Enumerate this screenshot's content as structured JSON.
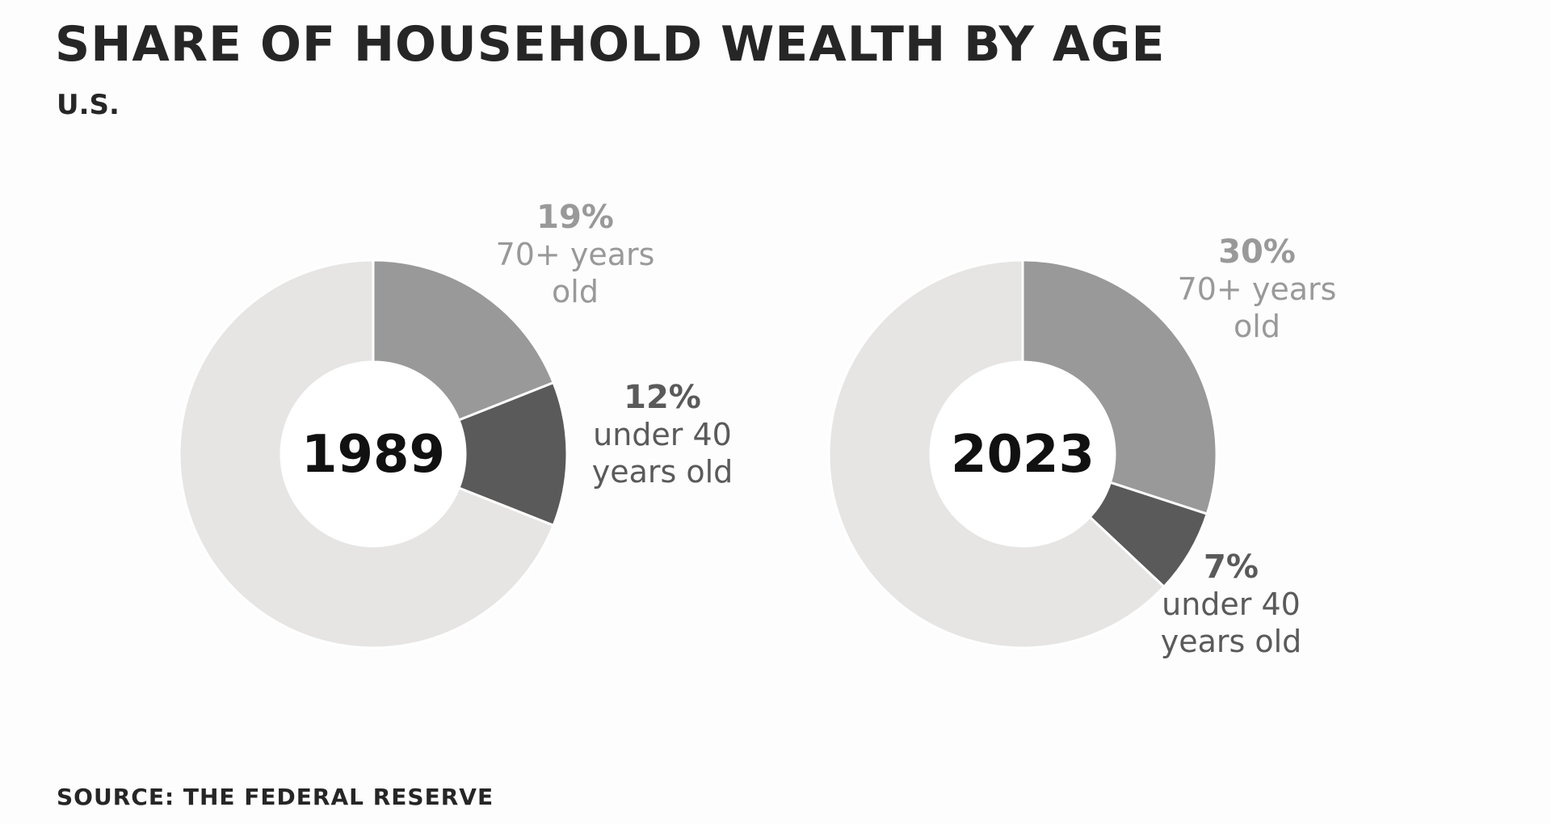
{
  "title": "Share of household wealth by age",
  "subtitle": "U.S.",
  "source": "Source: The Federal Reserve",
  "colors": {
    "over70": "#999999",
    "under40": "#5a5a5a",
    "rest": "#e6e5e4",
    "center_label": "#111111"
  },
  "chart_data": [
    {
      "type": "pie",
      "style": "donut",
      "center_label": "1989",
      "slices": [
        {
          "pct_label": "19%",
          "label_lines": [
            "70+ years",
            "old"
          ],
          "value": 19,
          "color_key": "over70"
        },
        {
          "pct_label": "12%",
          "label_lines": [
            "under 40",
            "years old"
          ],
          "value": 12,
          "color_key": "under40"
        },
        {
          "value": 69,
          "color_key": "rest"
        }
      ]
    },
    {
      "type": "pie",
      "style": "donut",
      "center_label": "2023",
      "slices": [
        {
          "pct_label": "30%",
          "label_lines": [
            "70+ years",
            "old"
          ],
          "value": 30,
          "color_key": "over70"
        },
        {
          "pct_label": "7%",
          "label_lines": [
            "under 40",
            "years old"
          ],
          "value": 7,
          "color_key": "under40"
        },
        {
          "value": 63,
          "color_key": "rest"
        }
      ]
    }
  ]
}
